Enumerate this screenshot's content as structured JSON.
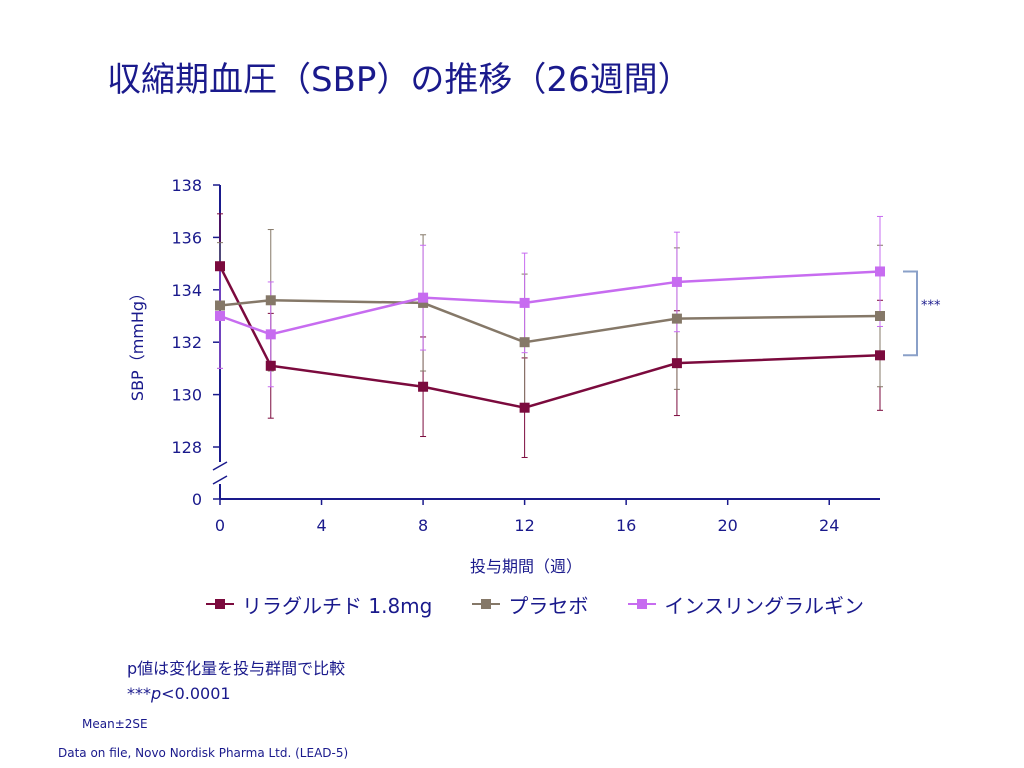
{
  "title": "収縮期血圧（SBP）の推移（26週間）",
  "colors": {
    "text": "#1a1a8c",
    "liraglutide": "#7b0a3d",
    "placebo": "#857868",
    "glargine": "#c76cf0",
    "bracket": "#8aa0c8"
  },
  "chart_data": {
    "type": "line",
    "xlabel": "投与期間（週）",
    "ylabel": "SBP（mmHg）",
    "xlim": [
      0,
      26
    ],
    "ylim": [
      128,
      138
    ],
    "x_ticks": [
      0,
      4,
      8,
      12,
      16,
      20,
      24
    ],
    "y_ticks": [
      128,
      130,
      132,
      134,
      136,
      138
    ],
    "y_axis_break_label": "0",
    "y_axis_break": true,
    "grid": false,
    "legend_position": "bottom",
    "error_bars": "Mean±2SE",
    "series": [
      {
        "name": "リラグルチド 1.8mg",
        "color": "#7b0a3d",
        "x": [
          0,
          2,
          8,
          12,
          18,
          26
        ],
        "y": [
          134.9,
          131.1,
          130.3,
          129.5,
          131.2,
          131.5
        ],
        "err": [
          2.0,
          2.0,
          1.9,
          1.9,
          2.0,
          2.1
        ]
      },
      {
        "name": "プラセボ",
        "color": "#857868",
        "x": [
          0,
          2,
          8,
          12,
          18,
          26
        ],
        "y": [
          133.4,
          133.6,
          133.5,
          132.0,
          132.9,
          133.0
        ],
        "err": [
          2.4,
          2.7,
          2.6,
          2.6,
          2.7,
          2.7
        ]
      },
      {
        "name": "インスリングラルギン",
        "color": "#c76cf0",
        "x": [
          0,
          2,
          8,
          12,
          18,
          26
        ],
        "y": [
          133.0,
          132.3,
          133.7,
          133.5,
          134.3,
          134.7
        ],
        "err": [
          2.0,
          2.0,
          2.0,
          1.9,
          1.9,
          2.1
        ]
      }
    ],
    "annotations": [
      {
        "text": "***",
        "type": "bracket",
        "y_range": [
          131.5,
          134.7
        ]
      }
    ]
  },
  "notes": {
    "line1": "p値は変化量を投与群間で比較",
    "line2_prefix": "***",
    "line2_p": "p",
    "line2_suffix": "<0.0001"
  },
  "mean_note": "Mean±2SE",
  "source": "Data on file, Novo Nordisk Pharma Ltd. (LEAD-5)"
}
